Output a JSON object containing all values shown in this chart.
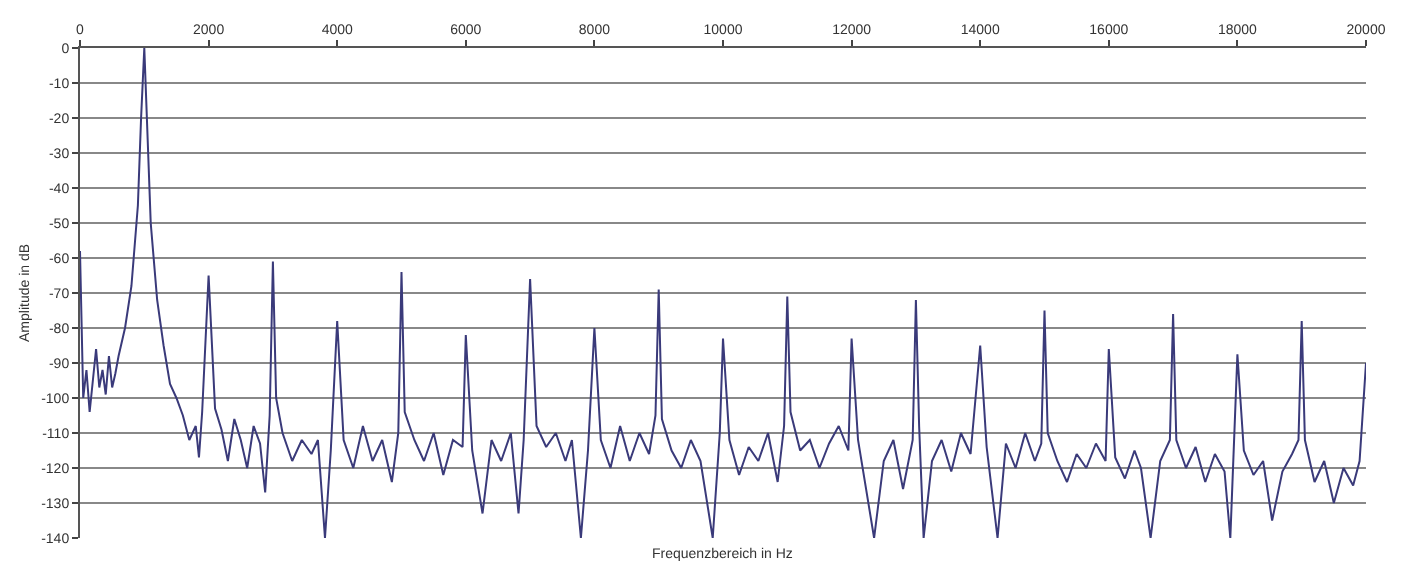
{
  "chart_data": {
    "type": "line",
    "xlabel": "Frequenzbereich in Hz",
    "ylabel": "Amplitude in dB",
    "xlim": [
      0,
      20000
    ],
    "xticks": [
      0,
      2000,
      4000,
      6000,
      8000,
      10000,
      12000,
      14000,
      16000,
      18000,
      20000
    ],
    "ylim": [
      -140,
      0
    ],
    "yticks": [
      0,
      -10,
      -20,
      -30,
      -40,
      -50,
      -60,
      -70,
      -80,
      -90,
      -100,
      -110,
      -120,
      -130,
      -140
    ],
    "grid": "y",
    "marker": "none",
    "line_style": "solid",
    "series": [
      {
        "color": "#3a3a7a",
        "x": [
          0,
          50,
          100,
          150,
          200,
          250,
          300,
          350,
          400,
          450,
          500,
          550,
          600,
          700,
          800,
          900,
          950,
          1000,
          1050,
          1100,
          1200,
          1300,
          1400,
          1500,
          1600,
          1700,
          1800,
          1850,
          1900,
          2000,
          2100,
          2200,
          2300,
          2400,
          2500,
          2600,
          2700,
          2800,
          2880,
          2950,
          3000,
          3050,
          3150,
          3300,
          3450,
          3600,
          3700,
          3810,
          3900,
          4000,
          4100,
          4250,
          4400,
          4550,
          4700,
          4850,
          4950,
          5000,
          5050,
          5200,
          5350,
          5500,
          5650,
          5800,
          5950,
          6000,
          6100,
          6260,
          6400,
          6550,
          6700,
          6820,
          6900,
          7000,
          7100,
          7250,
          7400,
          7550,
          7650,
          7790,
          7900,
          8000,
          8100,
          8250,
          8400,
          8550,
          8700,
          8850,
          8950,
          9000,
          9050,
          9200,
          9350,
          9500,
          9650,
          9840,
          9950,
          10000,
          10100,
          10250,
          10400,
          10550,
          10700,
          10850,
          10950,
          11000,
          11050,
          11200,
          11350,
          11500,
          11650,
          11800,
          11950,
          12000,
          12100,
          12350,
          12500,
          12650,
          12800,
          12950,
          13000,
          13050,
          13120,
          13250,
          13400,
          13550,
          13700,
          13850,
          14000,
          14100,
          14270,
          14400,
          14550,
          14700,
          14850,
          14950,
          15000,
          15050,
          15200,
          15350,
          15500,
          15650,
          15800,
          15950,
          16000,
          16100,
          16250,
          16400,
          16500,
          16650,
          16800,
          16950,
          17000,
          17050,
          17200,
          17350,
          17500,
          17650,
          17800,
          17890,
          18000,
          18100,
          18250,
          18400,
          18540,
          18700,
          18850,
          18950,
          19000,
          19050,
          19200,
          19350,
          19500,
          19650,
          19800,
          19900,
          20000
        ],
        "values": [
          -58,
          -100,
          -92,
          -104,
          -95,
          -86,
          -97,
          -92,
          -99,
          -88,
          -97,
          -93,
          -88,
          -80,
          -68,
          -45,
          -20,
          0,
          -25,
          -50,
          -72,
          -85,
          -96,
          -100,
          -105,
          -112,
          -108,
          -117,
          -104,
          -65,
          -103,
          -109,
          -118,
          -106,
          -112,
          -120,
          -108,
          -113,
          -127,
          -105,
          -61,
          -100,
          -110,
          -118,
          -112,
          -116,
          -112,
          -140,
          -115,
          -78,
          -112,
          -120,
          -108,
          -118,
          -112,
          -124,
          -110,
          -64,
          -104,
          -112,
          -118,
          -110,
          -122,
          -112,
          -114,
          -82,
          -115,
          -133,
          -112,
          -118,
          -110,
          -133,
          -112,
          -66,
          -108,
          -114,
          -110,
          -118,
          -112,
          -140,
          -115,
          -80,
          -112,
          -120,
          -108,
          -118,
          -110,
          -116,
          -105,
          -69,
          -106,
          -115,
          -120,
          -112,
          -118,
          -140,
          -110,
          -83,
          -112,
          -122,
          -114,
          -118,
          -110,
          -124,
          -108,
          -71,
          -104,
          -115,
          -112,
          -120,
          -113,
          -108,
          -115,
          -83,
          -112,
          -140,
          -118,
          -112,
          -126,
          -112,
          -72,
          -108,
          -140,
          -118,
          -112,
          -121,
          -110,
          -116,
          -85,
          -114,
          -140,
          -113,
          -120,
          -110,
          -118,
          -113,
          -75,
          -110,
          -118,
          -124,
          -116,
          -120,
          -113,
          -118,
          -86,
          -117,
          -123,
          -115,
          -120,
          -140,
          -118,
          -112,
          -76,
          -112,
          -120,
          -114,
          -124,
          -116,
          -121,
          -140,
          -87.5,
          -115,
          -122,
          -118,
          -135,
          -121,
          -116,
          -112,
          -78,
          -112,
          -124,
          -118,
          -130,
          -120,
          -125,
          -118,
          -90
        ]
      }
    ]
  }
}
